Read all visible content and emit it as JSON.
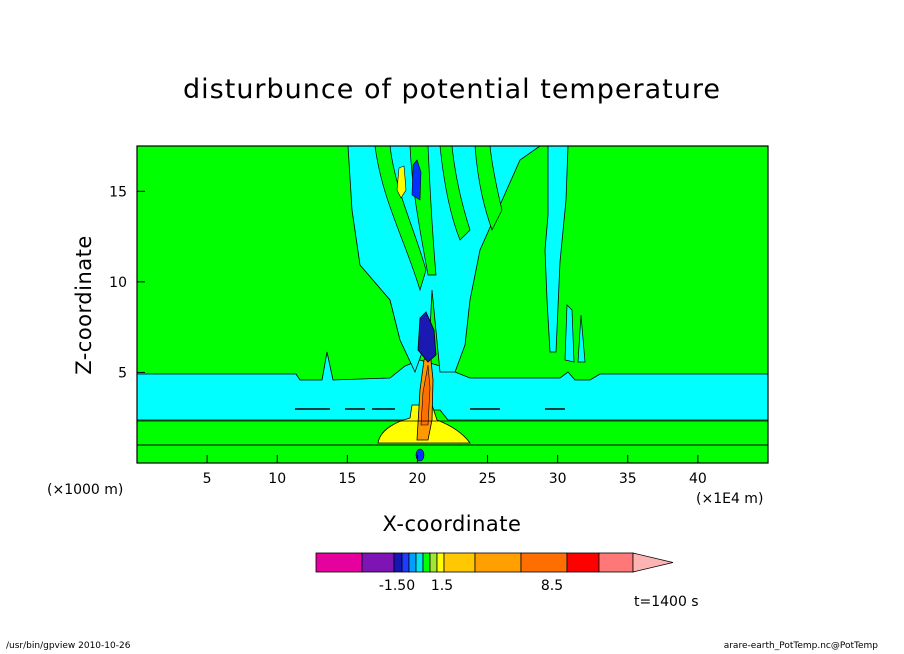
{
  "chart_data": {
    "type": "heatmap",
    "title": "disturbunce of potential temperature",
    "xlabel": "X-coordinate",
    "ylabel": "Z-coordinate",
    "x_unit": "(×1000 m)",
    "x_scale_note": "(×1E4 m)",
    "time_label": "t=1400 s",
    "xlim": [
      0,
      45
    ],
    "ylim": [
      0,
      17.5
    ],
    "x_ticks": [
      5,
      10,
      15,
      20,
      25,
      30,
      35,
      40
    ],
    "y_ticks": [
      5,
      10,
      15
    ],
    "colorbar": {
      "colors": [
        "#e6009e",
        "#7d14b3",
        "#1914b4",
        "#1e3cff",
        "#00a0ff",
        "#00e6f0",
        "#00ff00",
        "#a0e632",
        "#ffff00",
        "#ffc800",
        "#ffa000",
        "#ff6e00",
        "#ff0000",
        "#ff7878",
        "#ffb4b4"
      ],
      "tick_labels": [
        "-1.50",
        "1.5",
        "8.5"
      ],
      "extend": "max"
    }
  },
  "footer": {
    "left": "/usr/bin/gpview   2010-10-26",
    "right": "arare-earth_PotTemp.nc@PotTemp"
  },
  "colors": {
    "background_field": "#00ff00",
    "negative_band": "#00ffff",
    "warm_core": "#ff9900",
    "cold_core": "#1a1ab3"
  }
}
